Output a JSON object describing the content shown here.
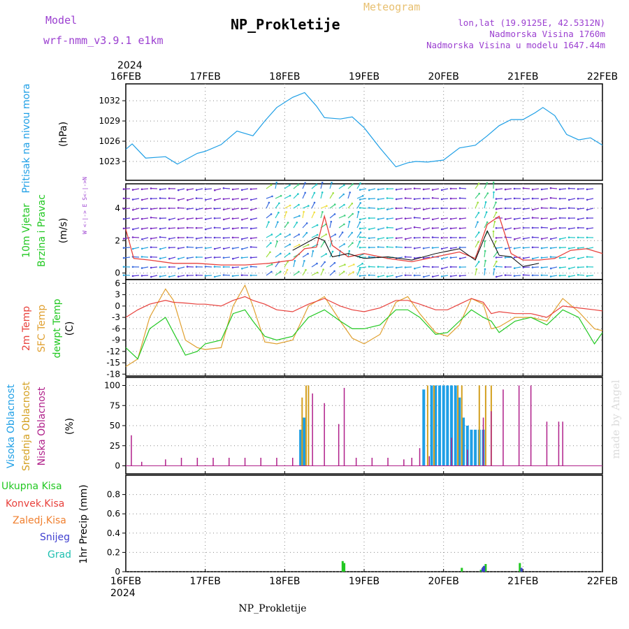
{
  "header": {
    "model_label": "Model",
    "model_name": "wrf-nmm_v3.9.1  e1km",
    "meteogram_label": "Meteogram",
    "title": "NP_Prokletije",
    "coords": "lon,lat (19.9125E, 42.5312N)",
    "elevation": "Nadmorska Visina 1760m",
    "model_elevation": "Nadmorska Visina u modelu 1647.44m"
  },
  "footer": {
    "station": "NP_Prokletije",
    "watermark": "made by Angel"
  },
  "colors": {
    "pressure": "#1e9fe6",
    "temp2m": "#e8413c",
    "sfc_temp": "#e0a030",
    "dewpoint": "#22c822",
    "cloud_high": "#1e9fe6",
    "cloud_mid": "#d4a020",
    "cloud_low": "#b0208a",
    "wind_speed": "#e8413c",
    "wind_gust": "#000000"
  },
  "chart_data": [
    {
      "type": "line",
      "name": "pressure",
      "ylabel_outer": "Pritisak na nivou mora",
      "ylabel": "(hPa)",
      "yticks": [
        "1032",
        "1029",
        "1026",
        "1023"
      ],
      "ylim": [
        1020.2,
        1034.5
      ],
      "x_year_top": "2024",
      "x_year_bottom": "2024",
      "categories": [
        "16FEB",
        "17FEB",
        "18FEB",
        "19FEB",
        "20FEB",
        "21FEB",
        "22FEB"
      ],
      "x": [
        0,
        0.08,
        0.25,
        0.5,
        0.65,
        0.9,
        1.0,
        1.2,
        1.4,
        1.6,
        1.75,
        1.9,
        2.1,
        2.25,
        2.4,
        2.5,
        2.7,
        2.85,
        3.0,
        3.2,
        3.4,
        3.55,
        3.65,
        3.8,
        4.0,
        4.2,
        4.4,
        4.55,
        4.7,
        4.85,
        5.0,
        5.15,
        5.25,
        5.4,
        5.55,
        5.7,
        5.85,
        6.0
      ],
      "values": [
        1024.8,
        1025.6,
        1023.5,
        1023.7,
        1022.6,
        1024.2,
        1024.5,
        1025.5,
        1027.5,
        1026.8,
        1029.0,
        1031.0,
        1032.5,
        1033.2,
        1031.2,
        1029.5,
        1029.3,
        1029.6,
        1028.0,
        1025.0,
        1022.2,
        1022.8,
        1023.0,
        1022.9,
        1023.2,
        1025.0,
        1025.4,
        1026.8,
        1028.3,
        1029.2,
        1029.2,
        1030.2,
        1031.0,
        1029.8,
        1027.0,
        1026.2,
        1026.5,
        1025.4
      ]
    },
    {
      "type": "line",
      "name": "wind",
      "ylabel_outer_1": "10m Vjetar",
      "ylabel_outer_2": "Brzina i Pravac",
      "ylabel": "(m/s)",
      "compass_label": "W <-|-> E   S<-|->N",
      "yticks": [
        "4",
        "2",
        "0"
      ],
      "ylim": [
        -0.4,
        5.5
      ],
      "x": [
        0,
        0.1,
        0.3,
        0.6,
        0.9,
        1.2,
        1.5,
        1.8,
        2.1,
        2.25,
        2.4,
        2.5,
        2.6,
        2.8,
        3.0,
        3.3,
        3.6,
        3.9,
        4.2,
        4.4,
        4.55,
        4.7,
        4.85,
        5.0,
        5.2,
        5.4,
        5.6,
        5.8,
        6.0
      ],
      "series": [
        {
          "name": "speed",
          "values": [
            2.7,
            0.9,
            0.8,
            0.6,
            0.6,
            0.5,
            0.5,
            0.6,
            0.8,
            1.5,
            1.6,
            3.5,
            1.7,
            1.0,
            1.2,
            0.9,
            0.7,
            1.0,
            1.3,
            0.9,
            3.0,
            3.5,
            1.2,
            0.8,
            0.8,
            0.9,
            1.4,
            1.5,
            1.2
          ]
        },
        {
          "name": "gust",
          "values": [
            null,
            null,
            null,
            null,
            null,
            null,
            null,
            null,
            1.4,
            1.8,
            2.2,
            2.0,
            1.0,
            1.2,
            0.9,
            1.0,
            0.8,
            1.2,
            1.5,
            0.8,
            2.6,
            1.1,
            1.0,
            0.4,
            0.6,
            null,
            null,
            null,
            null
          ]
        }
      ]
    },
    {
      "type": "line",
      "name": "temperature",
      "ylabel_outer_1": "2m Temp",
      "ylabel_outer_2": "SFC Temp",
      "ylabel_outer_3": "dewpt Temp",
      "ylabel": "(C)",
      "yticks": [
        "6",
        "3",
        "0",
        "-3",
        "-6",
        "-9",
        "-12",
        "-15",
        "-18"
      ],
      "ylim": [
        -18.5,
        7
      ],
      "x": [
        0,
        0.15,
        0.3,
        0.5,
        0.6,
        0.75,
        0.9,
        1.0,
        1.2,
        1.35,
        1.5,
        1.6,
        1.75,
        1.9,
        2.1,
        2.3,
        2.5,
        2.7,
        2.85,
        3.0,
        3.2,
        3.4,
        3.55,
        3.7,
        3.9,
        4.05,
        4.2,
        4.35,
        4.5,
        4.6,
        4.7,
        4.9,
        5.1,
        5.3,
        5.5,
        5.7,
        5.9,
        6.0
      ],
      "series": [
        {
          "name": "2m",
          "values": [
            -3.0,
            -1.0,
            0.5,
            1.5,
            1.0,
            0.8,
            0.5,
            0.5,
            0.0,
            1.5,
            2.5,
            1.5,
            0.5,
            -1.0,
            -1.5,
            0.5,
            2.0,
            0.0,
            -1.0,
            -1.5,
            -0.5,
            1.5,
            1.5,
            0.5,
            -1.0,
            -1.0,
            0.5,
            2.0,
            1.0,
            -2.0,
            -1.5,
            -2.0,
            -2.0,
            -3.0,
            0.0,
            -0.5,
            -1.0,
            -1.3
          ]
        },
        {
          "name": "sfc",
          "values": [
            -16.0,
            -14.0,
            -3.0,
            4.5,
            1.5,
            -9.0,
            -11.0,
            -11.5,
            -11.0,
            0.0,
            5.5,
            0.0,
            -9.5,
            -10.0,
            -9.0,
            0.0,
            2.5,
            -4.0,
            -8.5,
            -10.0,
            -7.5,
            1.0,
            2.5,
            -2.0,
            -7.0,
            -8.0,
            -5.0,
            2.0,
            0.5,
            -6.0,
            -5.5,
            -3.0,
            -3.0,
            -4.0,
            2.0,
            -1.5,
            -6.0,
            -6.5
          ]
        },
        {
          "name": "dewpt",
          "values": [
            -11.0,
            -14.0,
            -6.0,
            -3.0,
            -7.0,
            -13.0,
            -12.0,
            -10.0,
            -9.0,
            -2.0,
            -1.0,
            -4.0,
            -8.0,
            -9.0,
            -8.0,
            -3.0,
            -1.0,
            -4.0,
            -6.0,
            -6.0,
            -5.0,
            -1.0,
            -1.0,
            -3.0,
            -7.5,
            -7.0,
            -4.0,
            -1.0,
            -3.0,
            -4.0,
            -7.0,
            -4.0,
            -3.0,
            -5.0,
            -1.0,
            -3.0,
            -10.0,
            -7.0
          ]
        }
      ]
    },
    {
      "type": "bar",
      "name": "clouds",
      "ylabel_outer_1": "Visoka Oblacnost",
      "ylabel_outer_2": "Srednja Oblacnost",
      "ylabel_outer_3": "Niska Oblacnost",
      "ylabel": "(%)",
      "yticks": [
        "100",
        "75",
        "50",
        "25",
        "0"
      ],
      "ylim": [
        0,
        100
      ],
      "series": [
        {
          "name": "high",
          "x": [
            2.2,
            2.23,
            2.26,
            3.75,
            3.85,
            3.9,
            3.95,
            4.0,
            4.05,
            4.1,
            4.15,
            4.2,
            4.25,
            4.3,
            4.35,
            4.4,
            4.45,
            4.5
          ],
          "values": [
            45,
            60,
            60,
            95,
            100,
            100,
            100,
            100,
            100,
            100,
            100,
            85,
            60,
            50,
            45,
            45,
            45,
            45
          ]
        },
        {
          "name": "mid",
          "x": [
            2.22,
            2.27,
            2.3,
            3.8,
            3.88,
            4.18,
            4.23,
            4.45,
            4.53,
            4.6
          ],
          "values": [
            85,
            100,
            100,
            100,
            100,
            100,
            100,
            100,
            100,
            100
          ]
        },
        {
          "name": "low",
          "x": [
            0.07,
            0.2,
            0.5,
            0.7,
            0.9,
            1.1,
            1.3,
            1.5,
            1.7,
            1.9,
            2.1,
            2.35,
            2.5,
            2.68,
            2.75,
            2.9,
            3.1,
            3.3,
            3.5,
            3.6,
            3.7,
            3.82,
            4.1,
            4.3,
            4.5,
            4.6,
            4.75,
            4.95,
            5.1,
            5.3,
            5.45,
            5.5
          ],
          "values": [
            38,
            5,
            8,
            10,
            10,
            10,
            10,
            10,
            10,
            10,
            10,
            90,
            78,
            52,
            97,
            10,
            10,
            10,
            8,
            10,
            22,
            12,
            35,
            20,
            60,
            68,
            95,
            100,
            100,
            55,
            55,
            55
          ]
        }
      ]
    },
    {
      "type": "bar",
      "name": "precipitation",
      "ylabel_outer_1": "Ukupna  Kisa",
      "ylabel_outer_2": "Konvek.Kisa",
      "ylabel_outer_3": "Zaledj.Kisa",
      "ylabel_outer_4": "Snijeg",
      "ylabel_outer_5": "Grad",
      "ylabel": "1hr Precip (mm)",
      "yticks": [
        "0.8",
        "0.6",
        "0.4",
        "0.2",
        "0"
      ],
      "ylim": [
        0,
        1.0
      ],
      "series": [
        {
          "name": "total",
          "x": [
            2.73,
            2.75,
            4.23,
            4.47,
            4.5,
            4.53,
            4.96
          ],
          "values": [
            0.11,
            0.09,
            0.04,
            0.02,
            0.05,
            0.08,
            0.09
          ]
        },
        {
          "name": "snow",
          "x": [
            4.49,
            4.51,
            4.98
          ],
          "values": [
            0.04,
            0.06,
            0.04
          ]
        }
      ]
    }
  ]
}
